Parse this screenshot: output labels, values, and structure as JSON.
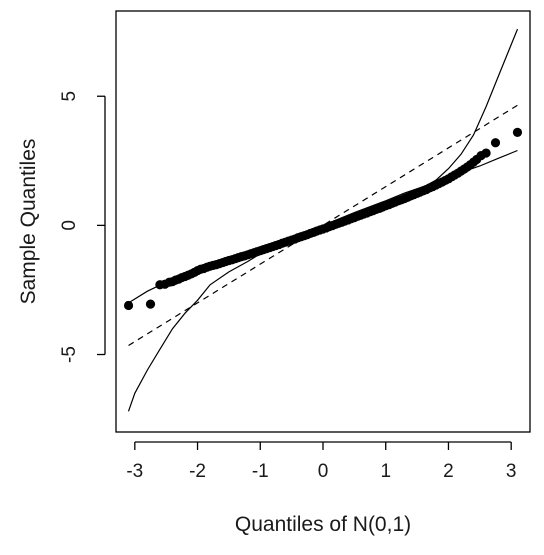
{
  "chart_data": {
    "type": "scatter",
    "title": "",
    "xlabel": "Quantiles of N(0,1)",
    "ylabel": "Sample Quantiles",
    "xlim": [
      -3.3,
      3.3
    ],
    "ylim": [
      -8.0,
      8.3
    ],
    "x_ticks": [
      -3,
      -2,
      -1,
      0,
      1,
      2,
      3
    ],
    "x_tick_labels": [
      "-3",
      "-2",
      "-1",
      "0",
      "1",
      "2",
      "3"
    ],
    "y_ticks": [
      -5,
      0,
      5
    ],
    "y_tick_labels": [
      "-5",
      "0",
      "5"
    ],
    "grid": false,
    "legend": "none",
    "colors": {
      "points": "#000000",
      "lines": "#000000",
      "axes": "#000000"
    },
    "reference_line": {
      "style": "dashed",
      "intercept": 0.0,
      "slope": 1.5
    },
    "envelope": {
      "style": "solid",
      "upper": {
        "x": [
          -3.1,
          -2.8,
          -2.5,
          -2.2,
          -1.9,
          -1.6,
          -1.3,
          -1.0,
          -0.5,
          0.0,
          0.5,
          1.0,
          1.5,
          1.8,
          2.0,
          2.2,
          2.4,
          2.6,
          2.8,
          3.0,
          3.1
        ],
        "y": [
          -3.0,
          -2.55,
          -2.2,
          -1.9,
          -1.6,
          -1.35,
          -1.1,
          -0.85,
          -0.45,
          0.0,
          0.45,
          0.9,
          1.35,
          1.75,
          2.2,
          2.75,
          3.5,
          4.6,
          5.8,
          7.0,
          7.6
        ]
      },
      "lower": {
        "x": [
          -3.1,
          -3.0,
          -2.8,
          -2.6,
          -2.4,
          -2.2,
          -2.0,
          -1.8,
          -1.5,
          -1.2,
          -1.0,
          -0.5,
          0.0,
          0.5,
          1.0,
          1.3,
          1.6,
          1.9,
          2.2,
          2.5,
          2.8,
          3.1
        ],
        "y": [
          -7.2,
          -6.5,
          -5.6,
          -4.8,
          -4.0,
          -3.4,
          -2.9,
          -2.3,
          -1.8,
          -1.4,
          -1.1,
          -0.5,
          0.0,
          0.5,
          0.95,
          1.25,
          1.5,
          1.8,
          2.05,
          2.3,
          2.6,
          2.9
        ]
      }
    },
    "points": {
      "x": [
        -3.1,
        -2.75,
        -2.6,
        -2.52,
        -2.45,
        -2.4,
        -2.35,
        -2.3,
        -2.25,
        -2.2,
        -2.15,
        -2.1,
        -2.05,
        -2.0,
        -1.95,
        -1.9,
        -1.85,
        -1.8,
        -1.75,
        -1.7,
        -1.65,
        -1.6,
        -1.55,
        -1.5,
        -1.45,
        -1.4,
        -1.35,
        -1.3,
        -1.25,
        -1.2,
        -1.15,
        -1.1,
        -1.05,
        -1.0,
        -0.95,
        -0.9,
        -0.85,
        -0.8,
        -0.75,
        -0.7,
        -0.65,
        -0.6,
        -0.55,
        -0.5,
        -0.45,
        -0.4,
        -0.35,
        -0.3,
        -0.25,
        -0.2,
        -0.15,
        -0.1,
        -0.05,
        0.0,
        0.05,
        0.1,
        0.15,
        0.2,
        0.25,
        0.3,
        0.35,
        0.4,
        0.45,
        0.5,
        0.55,
        0.6,
        0.65,
        0.7,
        0.75,
        0.8,
        0.85,
        0.9,
        0.95,
        1.0,
        1.05,
        1.1,
        1.15,
        1.2,
        1.25,
        1.3,
        1.35,
        1.4,
        1.45,
        1.5,
        1.55,
        1.6,
        1.65,
        1.7,
        1.75,
        1.8,
        1.85,
        1.9,
        1.95,
        2.0,
        2.05,
        2.1,
        2.15,
        2.2,
        2.25,
        2.3,
        2.35,
        2.4,
        2.45,
        2.52,
        2.6,
        2.75,
        3.1
      ],
      "y": [
        -3.1,
        -3.05,
        -2.3,
        -2.28,
        -2.2,
        -2.18,
        -2.12,
        -2.08,
        -2.02,
        -1.98,
        -1.93,
        -1.88,
        -1.82,
        -1.75,
        -1.7,
        -1.67,
        -1.62,
        -1.58,
        -1.55,
        -1.52,
        -1.48,
        -1.44,
        -1.4,
        -1.36,
        -1.33,
        -1.29,
        -1.25,
        -1.21,
        -1.18,
        -1.14,
        -1.1,
        -1.06,
        -1.02,
        -0.98,
        -0.94,
        -0.9,
        -0.86,
        -0.82,
        -0.78,
        -0.74,
        -0.69,
        -0.65,
        -0.61,
        -0.57,
        -0.53,
        -0.48,
        -0.44,
        -0.4,
        -0.36,
        -0.31,
        -0.27,
        -0.22,
        -0.18,
        -0.14,
        -0.1,
        -0.05,
        -0.01,
        0.04,
        0.08,
        0.12,
        0.17,
        0.21,
        0.26,
        0.3,
        0.35,
        0.39,
        0.44,
        0.48,
        0.53,
        0.57,
        0.62,
        0.66,
        0.71,
        0.76,
        0.8,
        0.85,
        0.9,
        0.95,
        0.99,
        1.04,
        1.09,
        1.14,
        1.19,
        1.24,
        1.29,
        1.34,
        1.39,
        1.45,
        1.5,
        1.56,
        1.62,
        1.68,
        1.74,
        1.8,
        1.88,
        1.95,
        2.02,
        2.1,
        2.18,
        2.26,
        2.35,
        2.45,
        2.55,
        2.7,
        2.8,
        3.2,
        3.6
      ]
    }
  }
}
